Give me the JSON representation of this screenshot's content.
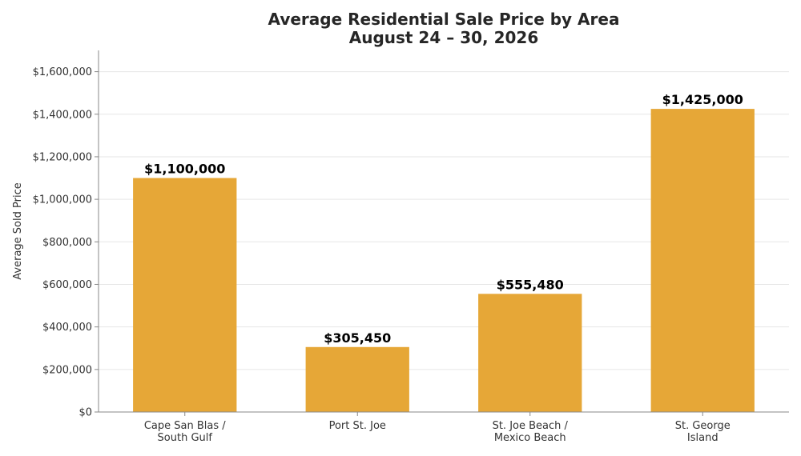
{
  "chart_data": {
    "type": "bar",
    "title": "Average Residential Sale Price by Area",
    "subtitle": "August 24 – 30, 2026",
    "xlabel": "",
    "ylabel": "Average Sold Price",
    "categories": [
      [
        "Cape San Blas /",
        "South Gulf"
      ],
      [
        "Port St. Joe"
      ],
      [
        "St. Joe Beach /",
        "Mexico Beach"
      ],
      [
        "St. George",
        "Island"
      ]
    ],
    "values": [
      1100000,
      305450,
      555480,
      1425000
    ],
    "data_labels": [
      "$1,100,000",
      "$305,450",
      "$555,480",
      "$1,425,000"
    ],
    "ylim": [
      0,
      1700000
    ],
    "yticks": [
      0,
      200000,
      400000,
      600000,
      800000,
      1000000,
      1200000,
      1400000,
      1600000
    ],
    "ytick_labels": [
      "$0",
      "$200,000",
      "$400,000",
      "$600,000",
      "$800,000",
      "$1,000,000",
      "$1,200,000",
      "$1,400,000",
      "$1,600,000"
    ],
    "grid": "horizontal",
    "legend": "none",
    "bar_color": "#E6A737",
    "grid_color": "#E6E6E6",
    "axis_color": "#888888"
  }
}
